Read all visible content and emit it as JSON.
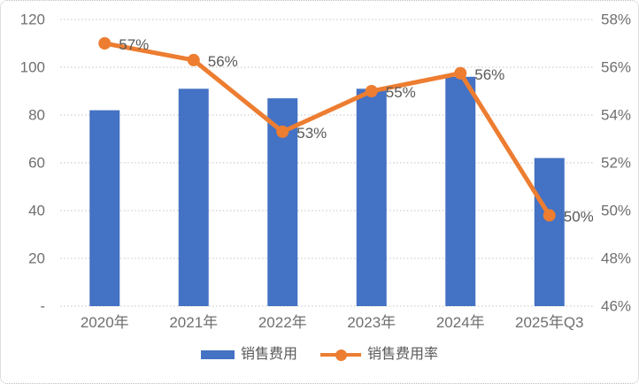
{
  "chart_data": {
    "type": "bar",
    "subtype": "combo-bar-line",
    "title": "",
    "categories": [
      "2020年",
      "2021年",
      "2022年",
      "2023年",
      "2024年",
      "2025年Q3"
    ],
    "series": [
      {
        "name": "销售费用",
        "type": "bar",
        "axis": "left",
        "color": "#4472C4",
        "values": [
          82,
          91,
          87,
          91,
          96,
          62
        ]
      },
      {
        "name": "销售费用率",
        "type": "line",
        "axis": "right",
        "color": "#ED7D31",
        "values": [
          57,
          56.3,
          53.3,
          55,
          55.75,
          49.8
        ],
        "point_labels": [
          "57%",
          "56%",
          "53%",
          "55%",
          "56%",
          "50%"
        ]
      }
    ],
    "left_axis": {
      "min": 0,
      "max": 120,
      "step": 20,
      "tick_labels_top_to_bottom": [
        "120",
        "100",
        "80",
        "60",
        "40",
        "20",
        "-"
      ]
    },
    "right_axis": {
      "min": 46,
      "max": 58,
      "step": 2,
      "tick_labels_top_to_bottom": [
        "58%",
        "56%",
        "54%",
        "52%",
        "50%",
        "48%",
        "46%"
      ]
    },
    "grid": true,
    "gridline_style": "dotted",
    "legend_position": "bottom"
  },
  "styles": {
    "background": "#FFFFFF",
    "border_color": "#BDBDBD",
    "grid_color": "#C3C3C3",
    "axis_tick_color": "#6F6F6F",
    "data_label_color": "#595959",
    "bar_color": "#4472C4",
    "line_color": "#ED7D31"
  }
}
